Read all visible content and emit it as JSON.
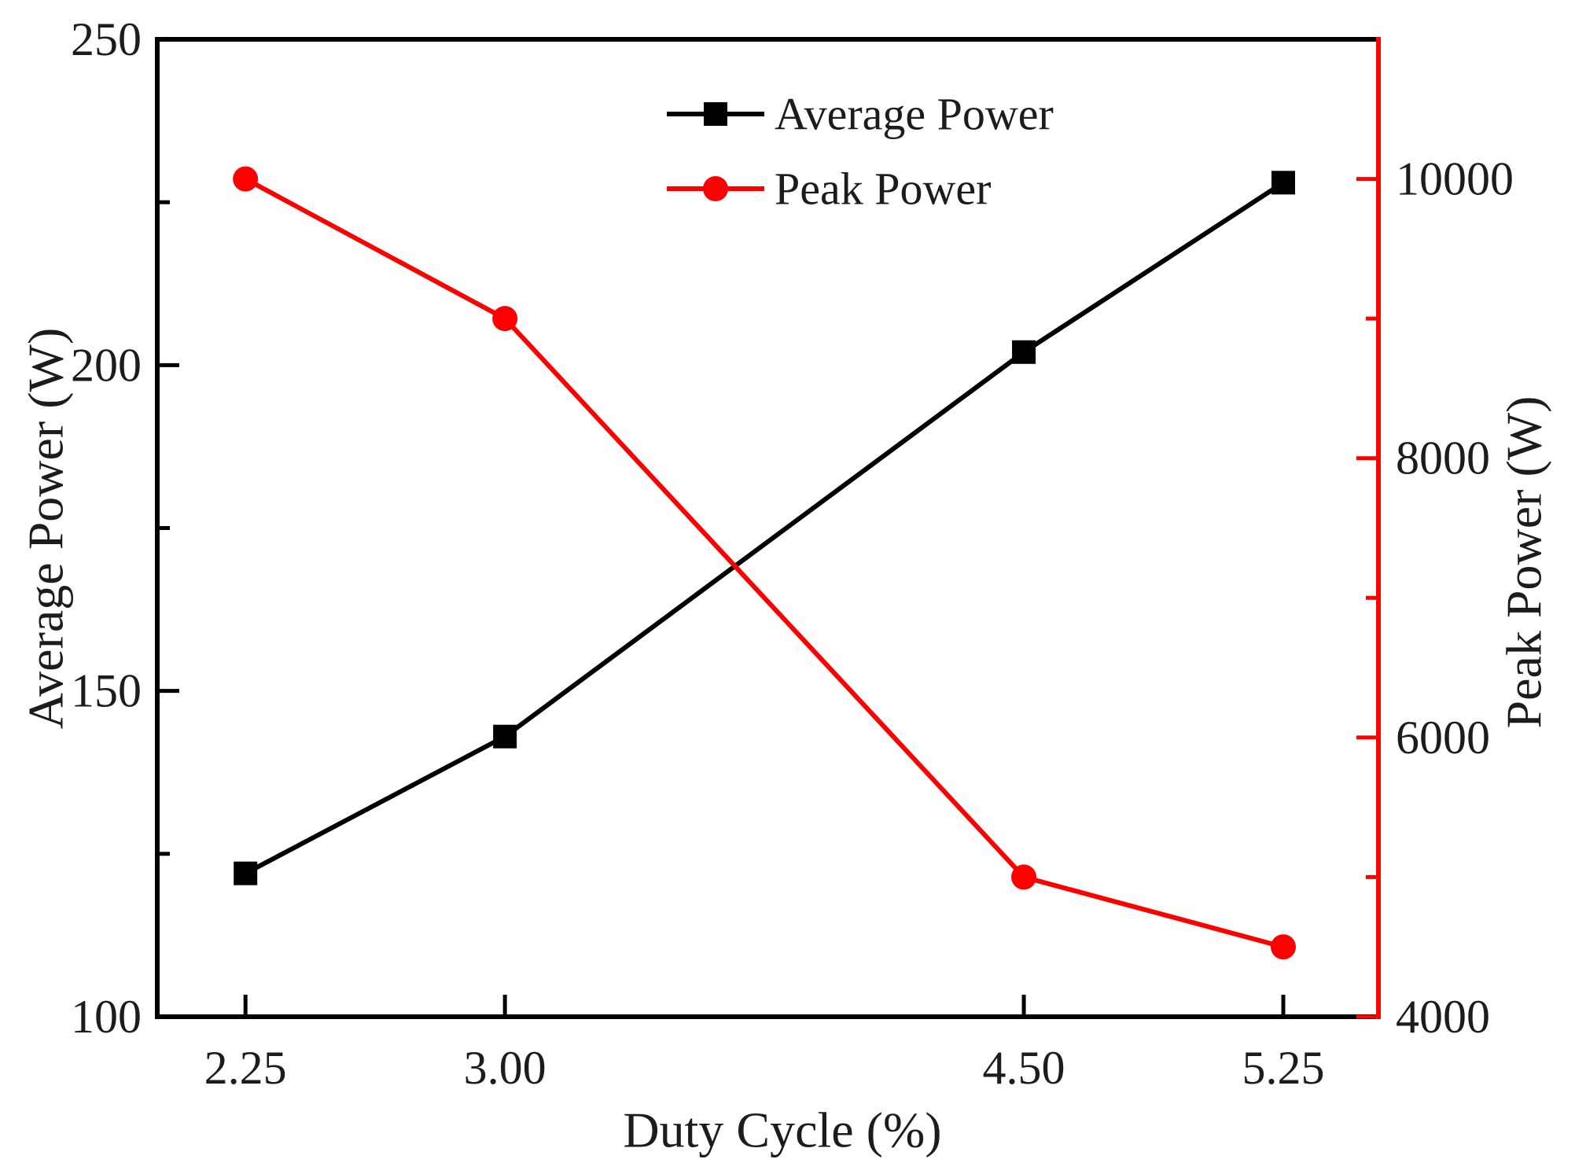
{
  "figure": {
    "background": "#ffffff"
  },
  "colors": {
    "average_series": "#000000",
    "peak_series": "#ff0000",
    "text": "#1c1c1c"
  },
  "legend": {
    "items": [
      {
        "label": "Average Power",
        "marker": "square",
        "color": "#000000"
      },
      {
        "label": "Peak Power",
        "marker": "circle",
        "color": "#ff0000"
      }
    ],
    "position": "top-center",
    "boxed": false
  },
  "chart_data": {
    "type": "line",
    "title": "",
    "xlabel": "Duty Cycle (%)",
    "ylabel_left": "Average Power (W)",
    "ylabel_right": "Peak Power (W)",
    "xlim": [
      1.995,
      5.525
    ],
    "x_tick_values": [
      2.25,
      3.0,
      4.5,
      5.25
    ],
    "x_tick_labels": [
      "2.25",
      "3.00",
      "4.50",
      "5.25"
    ],
    "ylim_left": [
      100,
      250
    ],
    "yticks_left": [
      100,
      150,
      200,
      250
    ],
    "yticks_left_minor": [
      125,
      175,
      225
    ],
    "ylim_right": [
      4000,
      11000
    ],
    "yticks_right": [
      4000,
      6000,
      8000,
      10000
    ],
    "yticks_right_minor": [
      5000,
      7000,
      9000
    ],
    "grid": false,
    "legend_position": "top-center",
    "series": [
      {
        "name": "Average Power",
        "axis": "left",
        "color": "#000000",
        "marker": "square",
        "x": [
          2.25,
          3.0,
          4.5,
          5.25
        ],
        "values": [
          122,
          143,
          202,
          228
        ]
      },
      {
        "name": "Peak Power",
        "axis": "right",
        "color": "#ff0000",
        "marker": "circle",
        "x": [
          2.25,
          3.0,
          4.5,
          5.25
        ],
        "values": [
          10000,
          9000,
          5000,
          4500
        ]
      }
    ]
  }
}
